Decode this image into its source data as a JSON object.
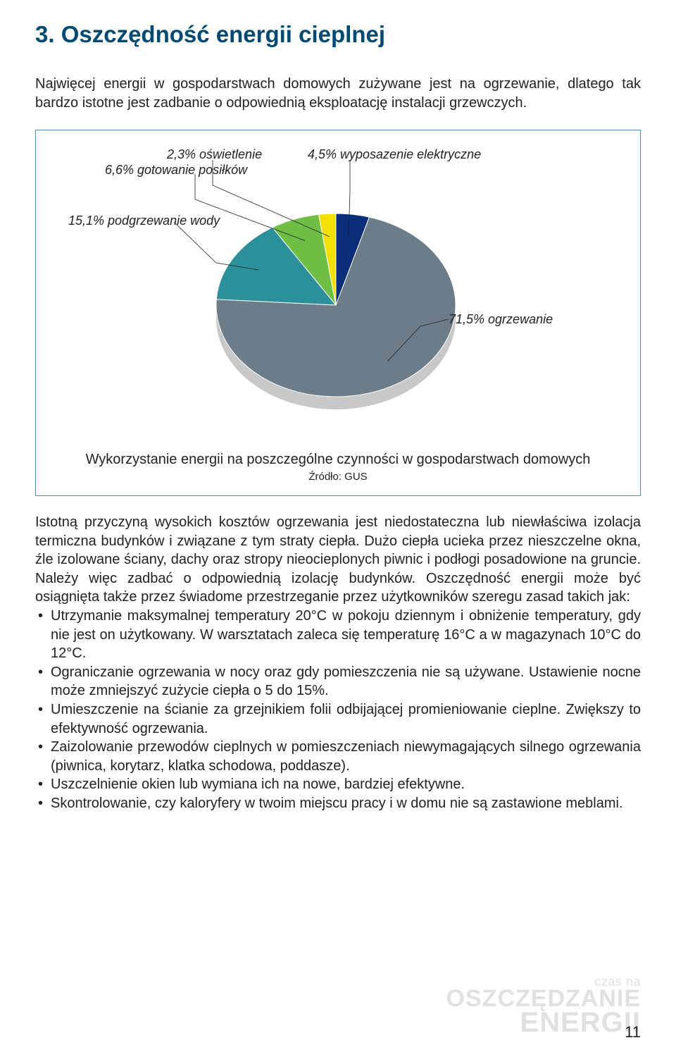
{
  "title": "3. Oszczędność energii cieplnej",
  "intro": "Najwięcej energii w gospodarstwach domowych zużywane jest na ogrzewanie, dlatego tak bardzo istotne jest zadbanie o odpowiednią eksploatację instalacji grzewczych.",
  "chart": {
    "type": "pie",
    "caption": "Wykorzystanie energii na poszczególne czynności w gospodarstwach domowych",
    "source": "Źródło: GUS",
    "slices": [
      {
        "label": "71,5% ogrzewanie",
        "value": 71.5,
        "color": "#6d7c89"
      },
      {
        "label": "15,1% podgrzewanie wody",
        "value": 15.1,
        "color": "#2b909a"
      },
      {
        "label": "6,6% gotowanie posiłków",
        "value": 6.6,
        "color": "#6fbf44"
      },
      {
        "label": "2,3% oświetlenie",
        "value": 2.3,
        "color": "#f2e000"
      },
      {
        "label": "4,5% wyposazenie elektryczne",
        "value": 4.5,
        "color": "#0a2d7a"
      }
    ],
    "label_fontsize": 18,
    "label_style": "italic",
    "border_color": "#4a8db5",
    "background": "#ffffff",
    "side_color": "#c8c8c8"
  },
  "body_para": "Istotną przyczyną wysokich kosztów ogrzewania jest niedostateczna lub niewłaściwa izolacja termiczna budynków i związane z tym straty ciepła. Dużo ciepła ucieka przez nieszczelne okna, źle izolowane ściany, dachy oraz stropy nieocieplonych piwnic i podłogi posadowione na gruncie. Należy więc zadbać o odpowiednią izolację budynków. Oszczędność energii może być osiągnięta także przez świadome przestrzeganie przez użytkowników szeregu zasad takich jak:",
  "bullets": [
    "Utrzymanie maksymalnej temperatury 20°C w pokoju dziennym i obniżenie temperatury, gdy nie jest on użytkowany. W warsztatach zaleca się temperaturę 16°C a w magazynach 10°C do 12°C.",
    "Ograniczanie ogrzewania w nocy oraz gdy pomieszczenia nie są używane. Ustawienie nocne może zmniejszyć zużycie ciepła o 5 do 15%.",
    "Umieszczenie na ścianie za grzejnikiem folii odbijającej promieniowanie cieplne. Zwiększy to efektywność ogrzewania.",
    "Zaizolowanie przewodów cieplnych w pomieszczeniach niewymagających silnego ogrzewania (piwnica, korytarz, klatka schodowa, poddasze).",
    "Uszczelnienie okien lub wymiana ich na nowe, bardziej efektywne.",
    "Skontrolowanie, czy kaloryfery w twoim miejscu pracy i w domu nie są zastawione meblami."
  ],
  "watermark": {
    "line1": "czas na",
    "line2": "OSZCZĘDZANIE",
    "line3": "ENERGII"
  },
  "page_number": "11"
}
